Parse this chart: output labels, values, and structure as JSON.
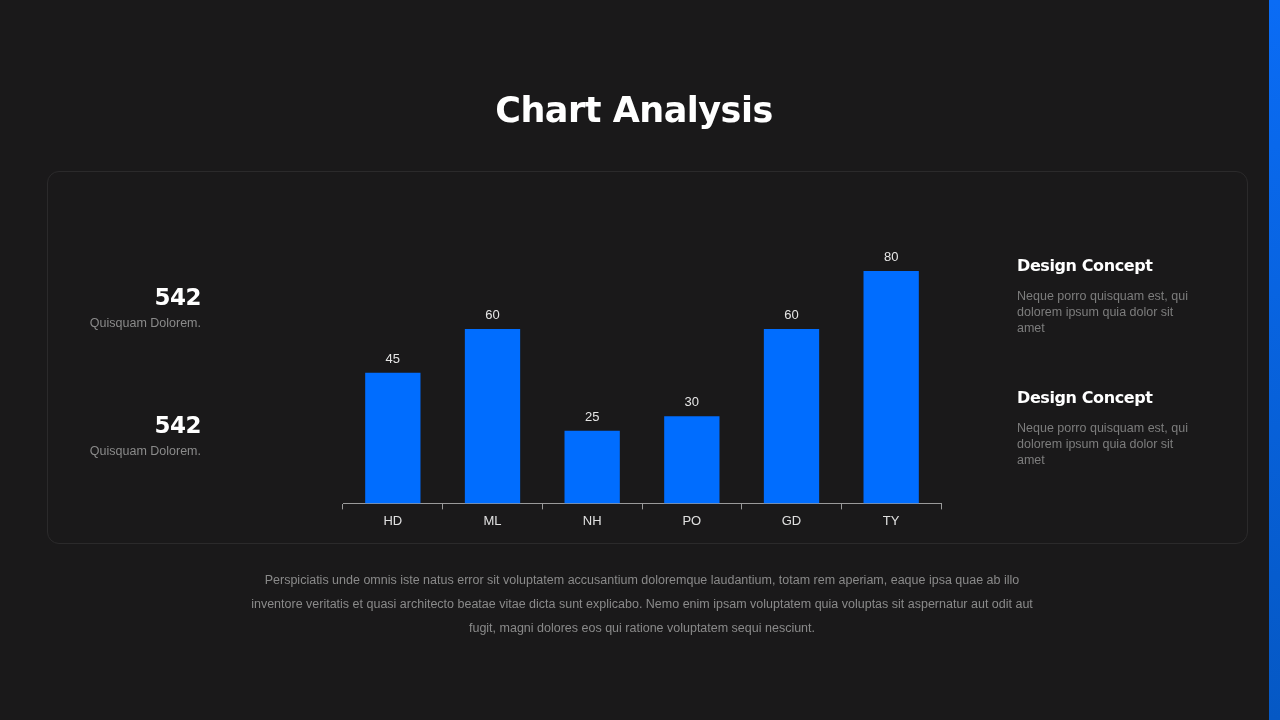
{
  "chart_data": {
    "type": "bar",
    "title": "Chart Analysis",
    "categories": [
      "HD",
      "ML",
      "NH",
      "PO",
      "GD",
      "TY"
    ],
    "values": [
      45,
      60,
      25,
      30,
      60,
      80
    ],
    "color": "#006dff",
    "data_labels": true,
    "grid": false,
    "legend": false,
    "tick_labels": "x",
    "annotations": [
      "542",
      "Quisquam Dolorem.",
      "542",
      "Quisquam Dolorem.",
      "Design Concept",
      "Neque porro quisquam est, qui dolorem ipsum quia dolor sit amet",
      "Design Concept",
      "Neque porro quisquam est, qui dolorem ipsum quia dolor sit amet",
      "Perspiciatis unde omnis iste natus error sit voluptatem accusantium doloremque laudantium, totam rem aperiam, eaque ipsa quae ab illo inventore veritatis et quasi architecto beatae vitae dicta sunt explicabo. Nemo enim ipsam voluptatem quia voluptas sit aspernatur aut odit aut fugit, magni dolores eos qui ratione voluptatem sequi nesciunt."
    ]
  }
}
